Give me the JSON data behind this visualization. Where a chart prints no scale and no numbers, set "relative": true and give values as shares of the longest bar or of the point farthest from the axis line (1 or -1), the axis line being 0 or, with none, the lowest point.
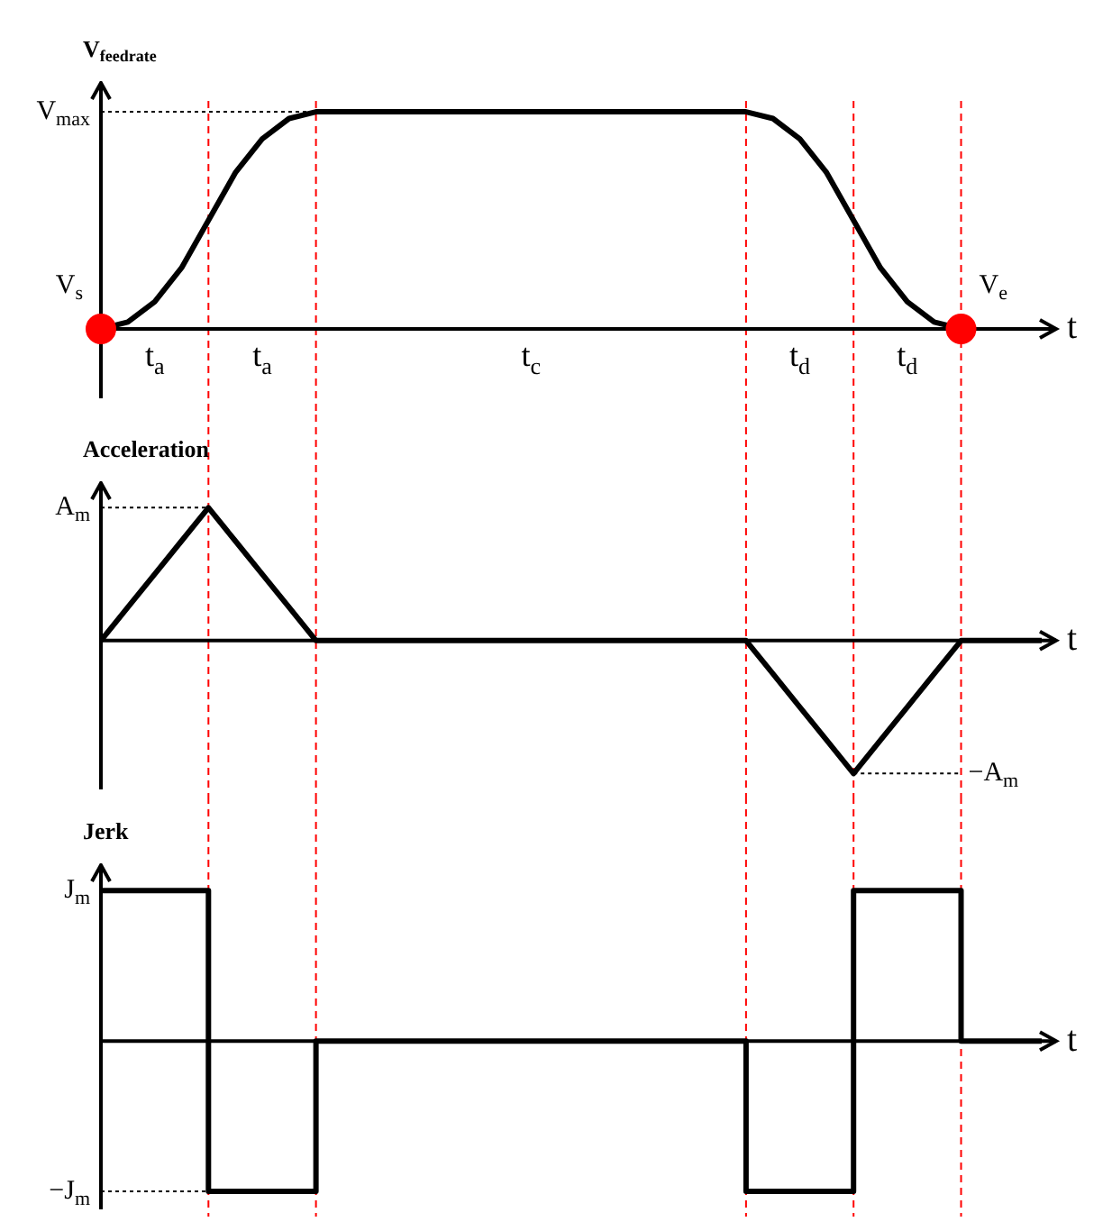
{
  "chart_data": [
    {
      "type": "line",
      "ylabel": "V$_{feedrate}$",
      "xlabel": "t",
      "relative": true,
      "tick_labels": "x",
      "grid": "x",
      "categories": [
        null,
        null,
        "t$_{a}$",
        null,
        null,
        null,
        "t$_{a}$",
        null,
        null,
        null,
        null,
        null,
        null,
        null,
        null,
        null,
        "t$_{c}$",
        null,
        null,
        null,
        null,
        null,
        null,
        null,
        null,
        null,
        "t$_{d}$",
        null,
        null,
        null,
        "t$_{d}$",
        null,
        null,
        null,
        null,
        null
      ],
      "series": [
        {
          "color": "#000000",
          "values": [
            0,
            0.031,
            0.125,
            0.281,
            0.5,
            0.719,
            0.875,
            0.969,
            1,
            1,
            1,
            1,
            1,
            1,
            1,
            1,
            1,
            1,
            1,
            1,
            1,
            1,
            1,
            1,
            1,
            0.969,
            0.875,
            0.719,
            0.5,
            0.281,
            0.125,
            0.031,
            0,
            null,
            null,
            null
          ]
        },
        {
          "type": "scatter",
          "name": "V$_{s}$",
          "marker": "circle",
          "color": "#ff0000",
          "values": [
            0,
            null,
            null,
            null,
            null,
            null,
            null,
            null,
            null,
            null,
            null,
            null,
            null,
            null,
            null,
            null,
            null,
            null,
            null,
            null,
            null,
            null,
            null,
            null,
            null,
            null,
            null,
            null,
            null,
            null,
            null,
            null,
            null,
            null,
            null,
            null
          ]
        },
        {
          "type": "scatter",
          "name": "V$_{e}$",
          "marker": "circle",
          "color": "#ff0000",
          "values": [
            null,
            null,
            null,
            null,
            null,
            null,
            null,
            null,
            null,
            null,
            null,
            null,
            null,
            null,
            null,
            null,
            null,
            null,
            null,
            null,
            null,
            null,
            null,
            null,
            null,
            null,
            null,
            null,
            null,
            null,
            null,
            null,
            0,
            null,
            null,
            null
          ]
        }
      ],
      "annotations": [
        "V$_{max}$"
      ]
    },
    {
      "type": "line",
      "ylabel": "Acceleration",
      "xlabel": "t",
      "relative": true,
      "tick_labels": false,
      "grid": "x",
      "categories": [
        null,
        null,
        null,
        null,
        null,
        null,
        null,
        null,
        null,
        null,
        null,
        null,
        null,
        null,
        null,
        null,
        null,
        null,
        null,
        null,
        null,
        null,
        null,
        null,
        null,
        null,
        null,
        null,
        null,
        null,
        null,
        null,
        null,
        null,
        null,
        null
      ],
      "series": [
        {
          "color": "#000000",
          "values": [
            0,
            0.25,
            0.5,
            0.75,
            1,
            0.75,
            0.5,
            0.25,
            0,
            0,
            0,
            0,
            0,
            0,
            0,
            0,
            0,
            0,
            0,
            0,
            0,
            0,
            0,
            0,
            0,
            -0.25,
            -0.5,
            -0.75,
            -1,
            -0.75,
            -0.5,
            -0.25,
            0,
            0,
            0,
            0
          ]
        }
      ],
      "annotations": [
        "A$_{m}$",
        "−A$_{m}$"
      ]
    },
    {
      "type": "step",
      "ylabel": "Jerk",
      "xlabel": "t",
      "relative": true,
      "tick_labels": false,
      "grid": "x",
      "categories": [
        null,
        null,
        null,
        null,
        null,
        null,
        null,
        null,
        null,
        null,
        null,
        null,
        null,
        null,
        null,
        null,
        null,
        null,
        null,
        null,
        null,
        null,
        null,
        null,
        null,
        null,
        null,
        null,
        null,
        null,
        null,
        null,
        null,
        null,
        null,
        null
      ],
      "series": [
        {
          "color": "#000000",
          "values": [
            1,
            1,
            1,
            1,
            1,
            -1,
            -1,
            -1,
            -1,
            0,
            0,
            0,
            0,
            0,
            0,
            0,
            0,
            0,
            0,
            0,
            0,
            0,
            0,
            0,
            0,
            -1,
            -1,
            -1,
            -1,
            1,
            1,
            1,
            1,
            0,
            0,
            0
          ]
        }
      ],
      "annotations": [
        "J$_{m}$",
        "−J$_{m}$"
      ]
    }
  ]
}
